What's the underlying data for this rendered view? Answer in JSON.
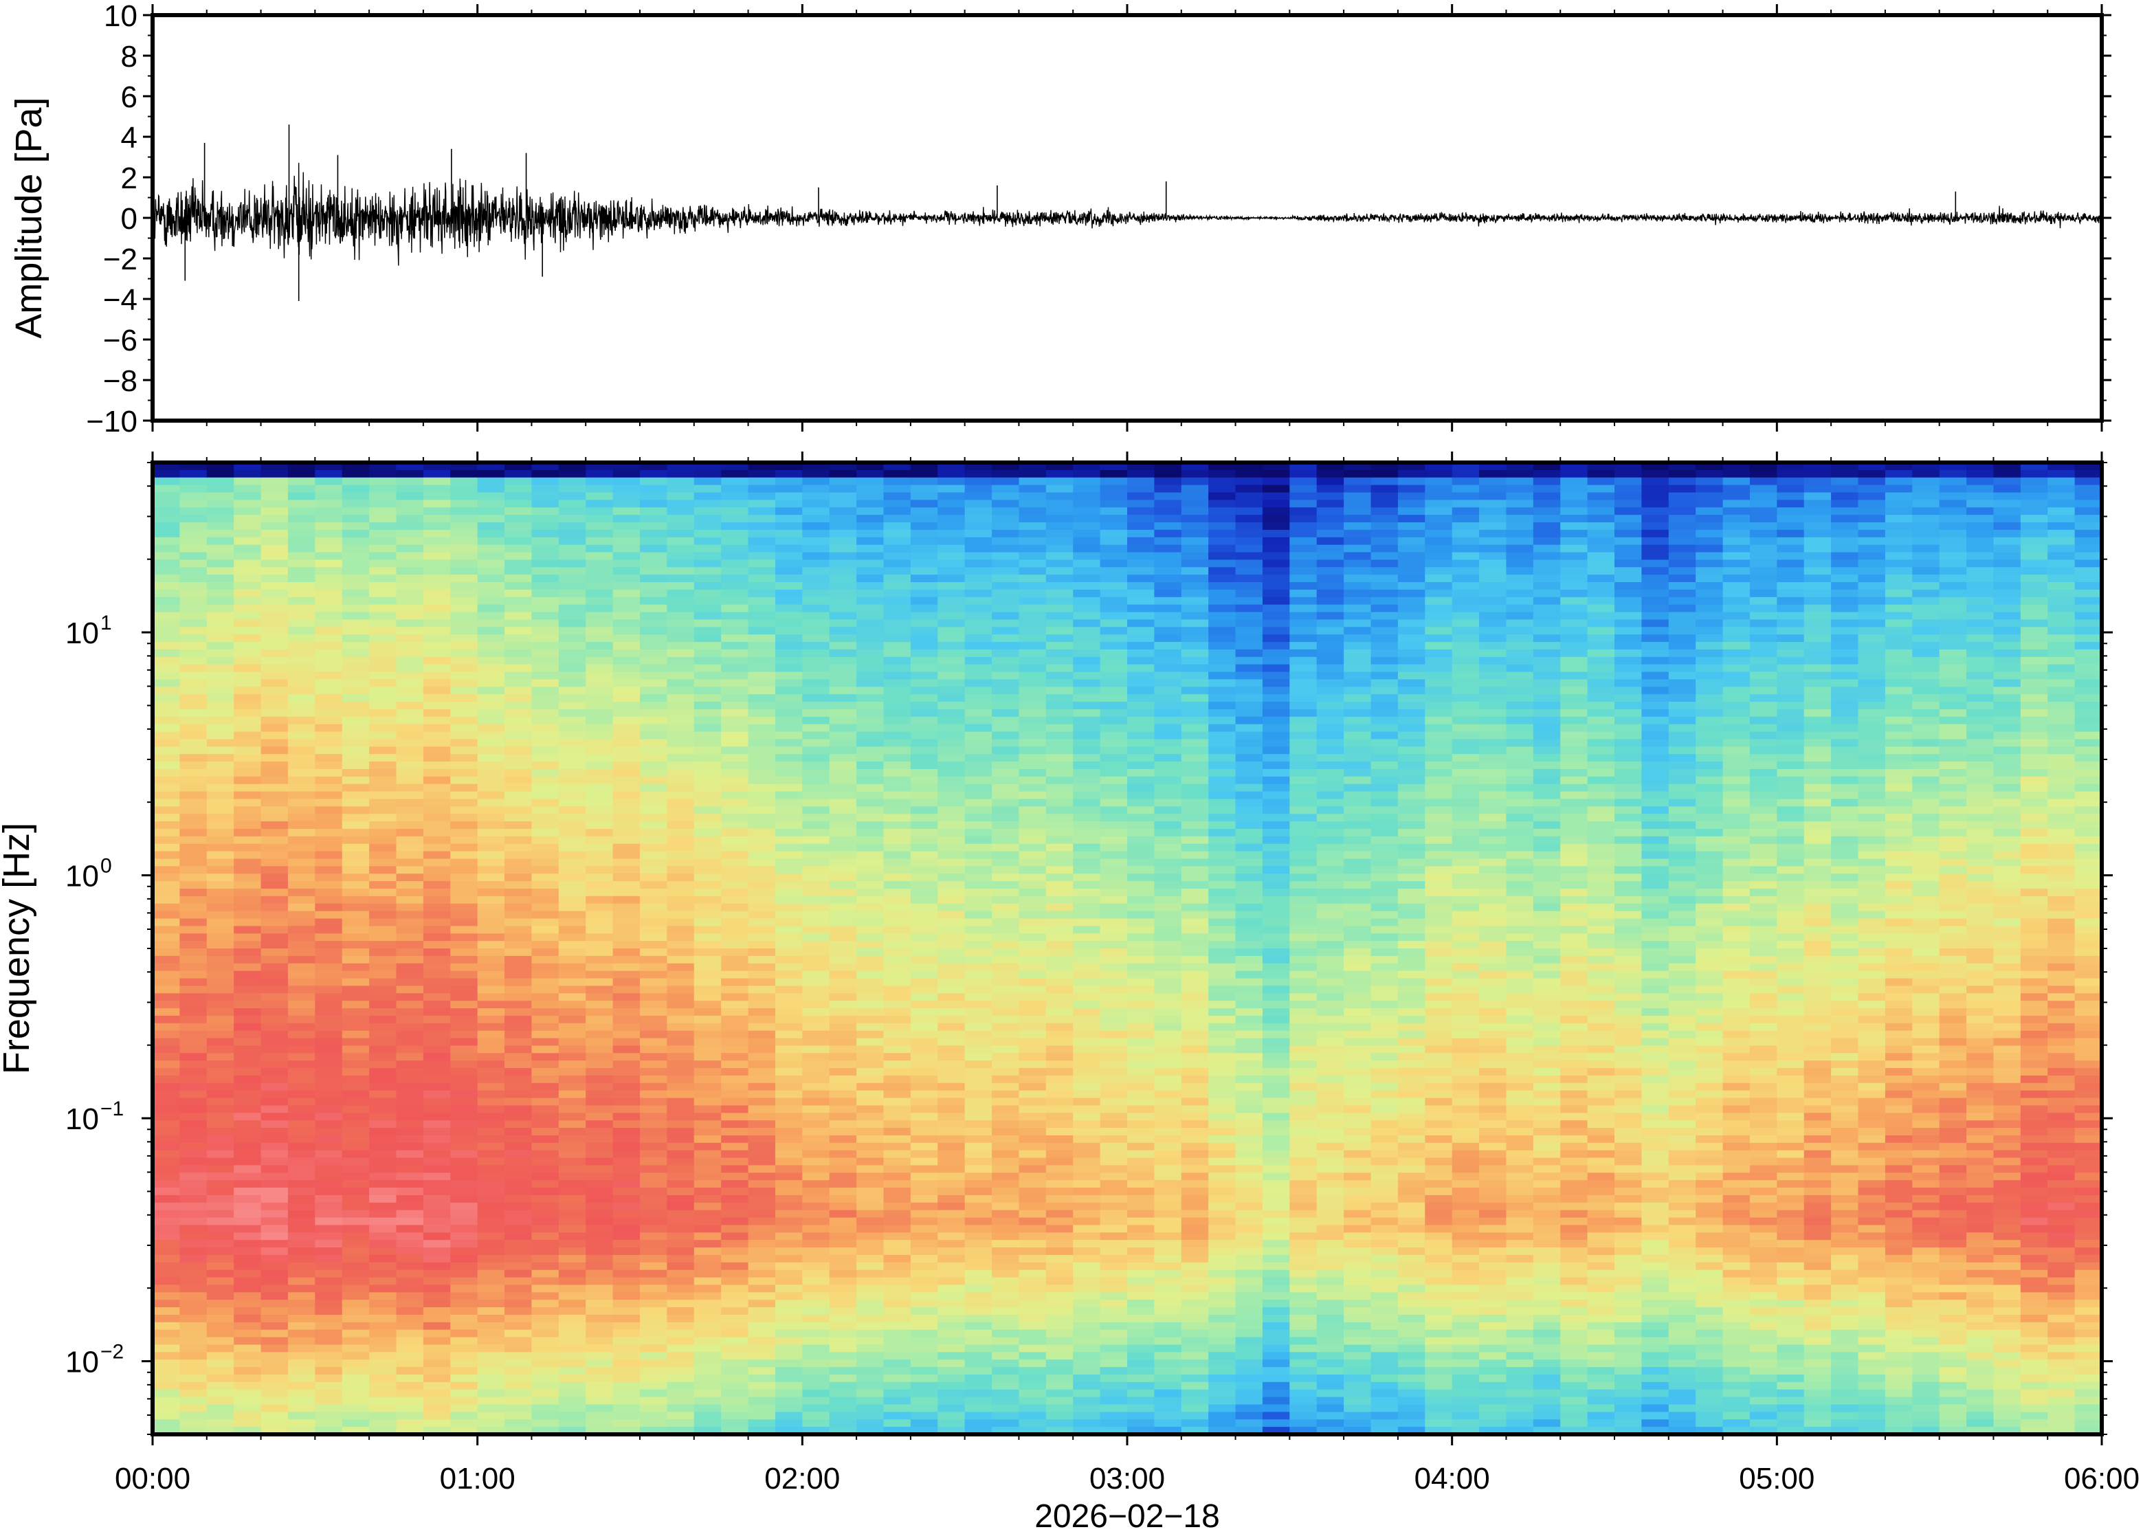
{
  "chart_data": [
    {
      "type": "line",
      "title": "",
      "xlabel": "",
      "ylabel": "Amplitude [Pa]",
      "ylim": [
        -10,
        10
      ],
      "yticks": [
        -10,
        -8,
        -6,
        -4,
        -2,
        0,
        2,
        4,
        6,
        8,
        10
      ],
      "ytick_labels": [
        "−10",
        "−8",
        "−6",
        "−4",
        "−2",
        "0",
        "2",
        "4",
        "6",
        "8",
        "10"
      ],
      "xlim": [
        "00:00",
        "06:00"
      ],
      "grid": false,
      "envelope_x_hours": [
        0.0,
        0.1,
        0.2,
        0.3,
        0.4,
        0.45,
        0.5,
        0.6,
        0.7,
        0.8,
        0.9,
        1.0,
        1.1,
        1.2,
        1.3,
        1.4,
        1.5,
        1.6,
        1.7,
        1.8,
        1.9,
        2.0,
        2.1,
        2.2,
        2.3,
        2.4,
        2.5,
        2.6,
        2.7,
        2.8,
        2.9,
        3.0,
        3.1,
        3.2,
        3.3,
        3.4,
        3.5,
        3.6,
        3.7,
        3.8,
        3.9,
        4.0,
        4.2,
        4.4,
        4.6,
        4.8,
        5.0,
        5.2,
        5.4,
        5.5,
        5.6,
        5.7,
        5.8,
        5.9,
        6.0
      ],
      "envelope_pa": [
        1.6,
        2.2,
        1.8,
        1.9,
        2.1,
        2.8,
        2.2,
        1.8,
        1.7,
        1.9,
        2.0,
        1.9,
        1.7,
        1.8,
        1.5,
        1.3,
        1.0,
        0.9,
        0.7,
        0.6,
        0.5,
        0.55,
        0.5,
        0.4,
        0.35,
        0.35,
        0.35,
        0.4,
        0.45,
        0.45,
        0.5,
        0.4,
        0.25,
        0.15,
        0.1,
        0.06,
        0.1,
        0.2,
        0.25,
        0.25,
        0.25,
        0.3,
        0.25,
        0.2,
        0.2,
        0.25,
        0.25,
        0.3,
        0.35,
        0.35,
        0.35,
        0.45,
        0.4,
        0.35,
        0.3
      ],
      "peaks": [
        {
          "x_hours": 0.16,
          "y": 3.7
        },
        {
          "x_hours": 0.42,
          "y": 4.6
        },
        {
          "x_hours": 0.45,
          "y": -4.1
        },
        {
          "x_hours": 0.57,
          "y": 3.1
        },
        {
          "x_hours": 0.92,
          "y": 3.4
        },
        {
          "x_hours": 1.15,
          "y": 3.2
        },
        {
          "x_hours": 0.1,
          "y": -3.1
        },
        {
          "x_hours": 1.2,
          "y": -2.9
        },
        {
          "x_hours": 2.05,
          "y": 1.5
        },
        {
          "x_hours": 2.6,
          "y": 1.6
        },
        {
          "x_hours": 3.12,
          "y": 1.8
        },
        {
          "x_hours": 5.55,
          "y": 1.3
        }
      ]
    },
    {
      "type": "heatmap",
      "title": "",
      "xlabel": "2026−02−18",
      "ylabel": "Frequency [Hz]",
      "yscale": "log",
      "ylim": [
        0.005,
        50
      ],
      "yticks": [
        0.01,
        0.1,
        1,
        10
      ],
      "ytick_labels": [
        {
          "base": "10",
          "exp": "−2"
        },
        {
          "base": "10",
          "exp": "−1"
        },
        {
          "base": "10",
          "exp": "0"
        },
        {
          "base": "10",
          "exp": "1"
        }
      ],
      "xlim": [
        "00:00",
        "06:00"
      ],
      "xticks": [
        "00:00",
        "01:00",
        "02:00",
        "03:00",
        "04:00",
        "05:00",
        "06:00"
      ],
      "colormap": [
        "#0a0a6e",
        "#1020b4",
        "#1f5ce0",
        "#2d9cf0",
        "#4ac8f0",
        "#6ee0c8",
        "#a8ecaa",
        "#e0f08c",
        "#f8d878",
        "#f8a860",
        "#f07058",
        "#f05858",
        "#f88888"
      ],
      "time_profile_hours": [
        0.0,
        0.5,
        1.0,
        1.5,
        2.0,
        2.5,
        3.0,
        3.25,
        3.45,
        3.6,
        4.0,
        4.5,
        4.65,
        4.8,
        5.0,
        5.5,
        5.75,
        6.0
      ],
      "high_freq_level": [
        0.42,
        0.46,
        0.42,
        0.34,
        0.28,
        0.24,
        0.22,
        0.12,
        0.06,
        0.14,
        0.2,
        0.2,
        0.1,
        0.18,
        0.2,
        0.2,
        0.22,
        0.2
      ],
      "low_freq_level": [
        0.96,
        0.97,
        0.95,
        0.88,
        0.82,
        0.76,
        0.74,
        0.72,
        0.62,
        0.7,
        0.74,
        0.74,
        0.7,
        0.75,
        0.78,
        0.82,
        0.88,
        0.9
      ]
    }
  ],
  "x_axis": {
    "tick_labels": [
      "00:00",
      "01:00",
      "02:00",
      "03:00",
      "04:00",
      "05:00",
      "06:00"
    ],
    "date_label": "2026−02−18"
  },
  "colors": {
    "trace": "#000000",
    "frame": "#000000",
    "background": "#ffffff"
  }
}
